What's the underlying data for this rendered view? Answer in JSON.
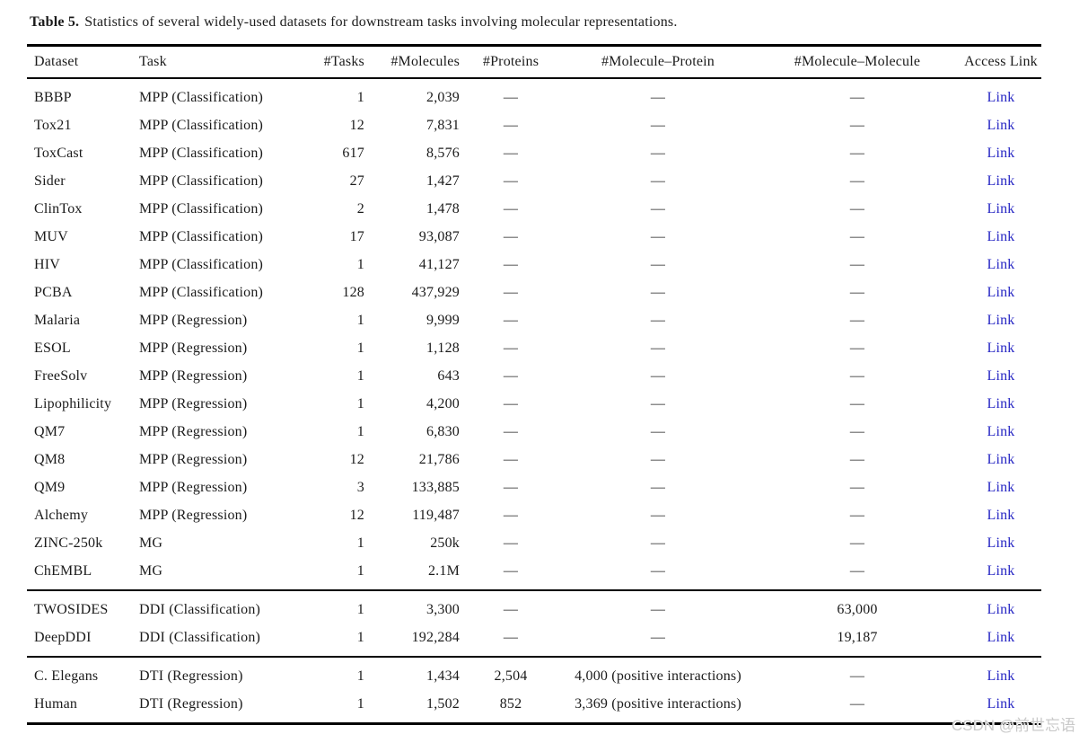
{
  "caption": {
    "label": "Table 5.",
    "text": "Statistics of several widely-used datasets for downstream tasks involving molecular representations."
  },
  "link_color": "#2727c4",
  "table": {
    "columns": [
      {
        "label": "Dataset",
        "align": "left"
      },
      {
        "label": "Task",
        "align": "left"
      },
      {
        "label": "#Tasks",
        "align": "right"
      },
      {
        "label": "#Molecules",
        "align": "right"
      },
      {
        "label": "#Proteins",
        "align": "center"
      },
      {
        "label": "#Molecule–Protein",
        "align": "center"
      },
      {
        "label": "#Molecule–Molecule",
        "align": "center"
      },
      {
        "label": "Access Link",
        "align": "center"
      }
    ],
    "groups": [
      {
        "rows": [
          {
            "dataset": "BBBP",
            "task": "MPP (Classification)",
            "tasks": "1",
            "molecules": "2,039",
            "proteins": "—",
            "mol_protein": "—",
            "mol_molecule": "—",
            "link": "Link"
          },
          {
            "dataset": "Tox21",
            "task": "MPP (Classification)",
            "tasks": "12",
            "molecules": "7,831",
            "proteins": "—",
            "mol_protein": "—",
            "mol_molecule": "—",
            "link": "Link"
          },
          {
            "dataset": "ToxCast",
            "task": "MPP (Classification)",
            "tasks": "617",
            "molecules": "8,576",
            "proteins": "—",
            "mol_protein": "—",
            "mol_molecule": "—",
            "link": "Link"
          },
          {
            "dataset": "Sider",
            "task": "MPP (Classification)",
            "tasks": "27",
            "molecules": "1,427",
            "proteins": "—",
            "mol_protein": "—",
            "mol_molecule": "—",
            "link": "Link"
          },
          {
            "dataset": "ClinTox",
            "task": "MPP (Classification)",
            "tasks": "2",
            "molecules": "1,478",
            "proteins": "—",
            "mol_protein": "—",
            "mol_molecule": "—",
            "link": "Link"
          },
          {
            "dataset": "MUV",
            "task": "MPP (Classification)",
            "tasks": "17",
            "molecules": "93,087",
            "proteins": "—",
            "mol_protein": "—",
            "mol_molecule": "—",
            "link": "Link"
          },
          {
            "dataset": "HIV",
            "task": "MPP (Classification)",
            "tasks": "1",
            "molecules": "41,127",
            "proteins": "—",
            "mol_protein": "—",
            "mol_molecule": "—",
            "link": "Link"
          },
          {
            "dataset": "PCBA",
            "task": "MPP (Classification)",
            "tasks": "128",
            "molecules": "437,929",
            "proteins": "—",
            "mol_protein": "—",
            "mol_molecule": "—",
            "link": "Link"
          },
          {
            "dataset": "Malaria",
            "task": "MPP (Regression)",
            "tasks": "1",
            "molecules": "9,999",
            "proteins": "—",
            "mol_protein": "—",
            "mol_molecule": "—",
            "link": "Link"
          },
          {
            "dataset": "ESOL",
            "task": "MPP (Regression)",
            "tasks": "1",
            "molecules": "1,128",
            "proteins": "—",
            "mol_protein": "—",
            "mol_molecule": "—",
            "link": "Link"
          },
          {
            "dataset": "FreeSolv",
            "task": "MPP (Regression)",
            "tasks": "1",
            "molecules": "643",
            "proteins": "—",
            "mol_protein": "—",
            "mol_molecule": "—",
            "link": "Link"
          },
          {
            "dataset": "Lipophilicity",
            "task": "MPP (Regression)",
            "tasks": "1",
            "molecules": "4,200",
            "proteins": "—",
            "mol_protein": "—",
            "mol_molecule": "—",
            "link": "Link"
          },
          {
            "dataset": "QM7",
            "task": "MPP (Regression)",
            "tasks": "1",
            "molecules": "6,830",
            "proteins": "—",
            "mol_protein": "—",
            "mol_molecule": "—",
            "link": "Link"
          },
          {
            "dataset": "QM8",
            "task": "MPP (Regression)",
            "tasks": "12",
            "molecules": "21,786",
            "proteins": "—",
            "mol_protein": "—",
            "mol_molecule": "—",
            "link": "Link"
          },
          {
            "dataset": "QM9",
            "task": "MPP (Regression)",
            "tasks": "3",
            "molecules": "133,885",
            "proteins": "—",
            "mol_protein": "—",
            "mol_molecule": "—",
            "link": "Link"
          },
          {
            "dataset": "Alchemy",
            "task": "MPP (Regression)",
            "tasks": "12",
            "molecules": "119,487",
            "proteins": "—",
            "mol_protein": "—",
            "mol_molecule": "—",
            "link": "Link"
          },
          {
            "dataset": "ZINC-250k",
            "task": "MG",
            "tasks": "1",
            "molecules": "250k",
            "proteins": "—",
            "mol_protein": "—",
            "mol_molecule": "—",
            "link": "Link"
          },
          {
            "dataset": "ChEMBL",
            "task": "MG",
            "tasks": "1",
            "molecules": "2.1M",
            "proteins": "—",
            "mol_protein": "—",
            "mol_molecule": "—",
            "link": "Link"
          }
        ]
      },
      {
        "rows": [
          {
            "dataset": "TWOSIDES",
            "task": "DDI (Classification)",
            "tasks": "1",
            "molecules": "3,300",
            "proteins": "—",
            "mol_protein": "—",
            "mol_molecule": "63,000",
            "link": "Link"
          },
          {
            "dataset": "DeepDDI",
            "task": "DDI (Classification)",
            "tasks": "1",
            "molecules": "192,284",
            "proteins": "—",
            "mol_protein": "—",
            "mol_molecule": "19,187",
            "link": "Link"
          }
        ]
      },
      {
        "rows": [
          {
            "dataset": "C. Elegans",
            "task": "DTI (Regression)",
            "tasks": "1",
            "molecules": "1,434",
            "proteins": "2,504",
            "mol_protein": "4,000 (positive interactions)",
            "mol_molecule": "—",
            "link": "Link"
          },
          {
            "dataset": "Human",
            "task": "DTI (Regression)",
            "tasks": "1",
            "molecules": "1,502",
            "proteins": "852",
            "mol_protein": "3,369 (positive interactions)",
            "mol_molecule": "—",
            "link": "Link"
          }
        ]
      }
    ]
  },
  "watermark": "CSDN @前世忘语"
}
